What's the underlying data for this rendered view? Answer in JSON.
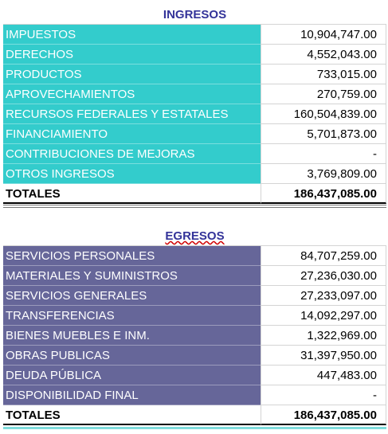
{
  "ingresos": {
    "title": "INGRESOS",
    "rows": [
      [
        "IMPUESTOS",
        "10,904,747.00"
      ],
      [
        "DERECHOS",
        "4,552,043.00"
      ],
      [
        "PRODUCTOS",
        "733,015.00"
      ],
      [
        "APROVECHAMIENTOS",
        "270,759.00"
      ],
      [
        "RECURSOS FEDERALES Y ESTATALES",
        "160,504,839.00"
      ],
      [
        "FINANCIAMIENTO",
        "5,701,873.00"
      ],
      [
        "CONTRIBUCIONES DE MEJORAS",
        "-"
      ],
      [
        "OTROS INGRESOS",
        "3,769,809.00"
      ]
    ],
    "total": [
      "TOTALES",
      "186,437,085.00"
    ]
  },
  "egresos": {
    "title": "EGRESOS",
    "rows": [
      [
        "SERVICIOS PERSONALES",
        "84,707,259.00"
      ],
      [
        "MATERIALES Y SUMINISTROS",
        "27,236,030.00"
      ],
      [
        "SERVICIOS GENERALES",
        "27,233,097.00"
      ],
      [
        "TRANSFERENCIAS",
        "14,092,297.00"
      ],
      [
        "BIENES MUEBLES E INM.",
        "1,322,969.00"
      ],
      [
        "OBRAS PUBLICAS",
        "31,397,950.00"
      ],
      [
        "DEUDA PÚBLICA",
        "447,483.00"
      ],
      [
        "DISPONIBILIDAD FINAL",
        "-"
      ]
    ],
    "total": [
      "TOTALES",
      "186,437,085.00"
    ]
  }
}
